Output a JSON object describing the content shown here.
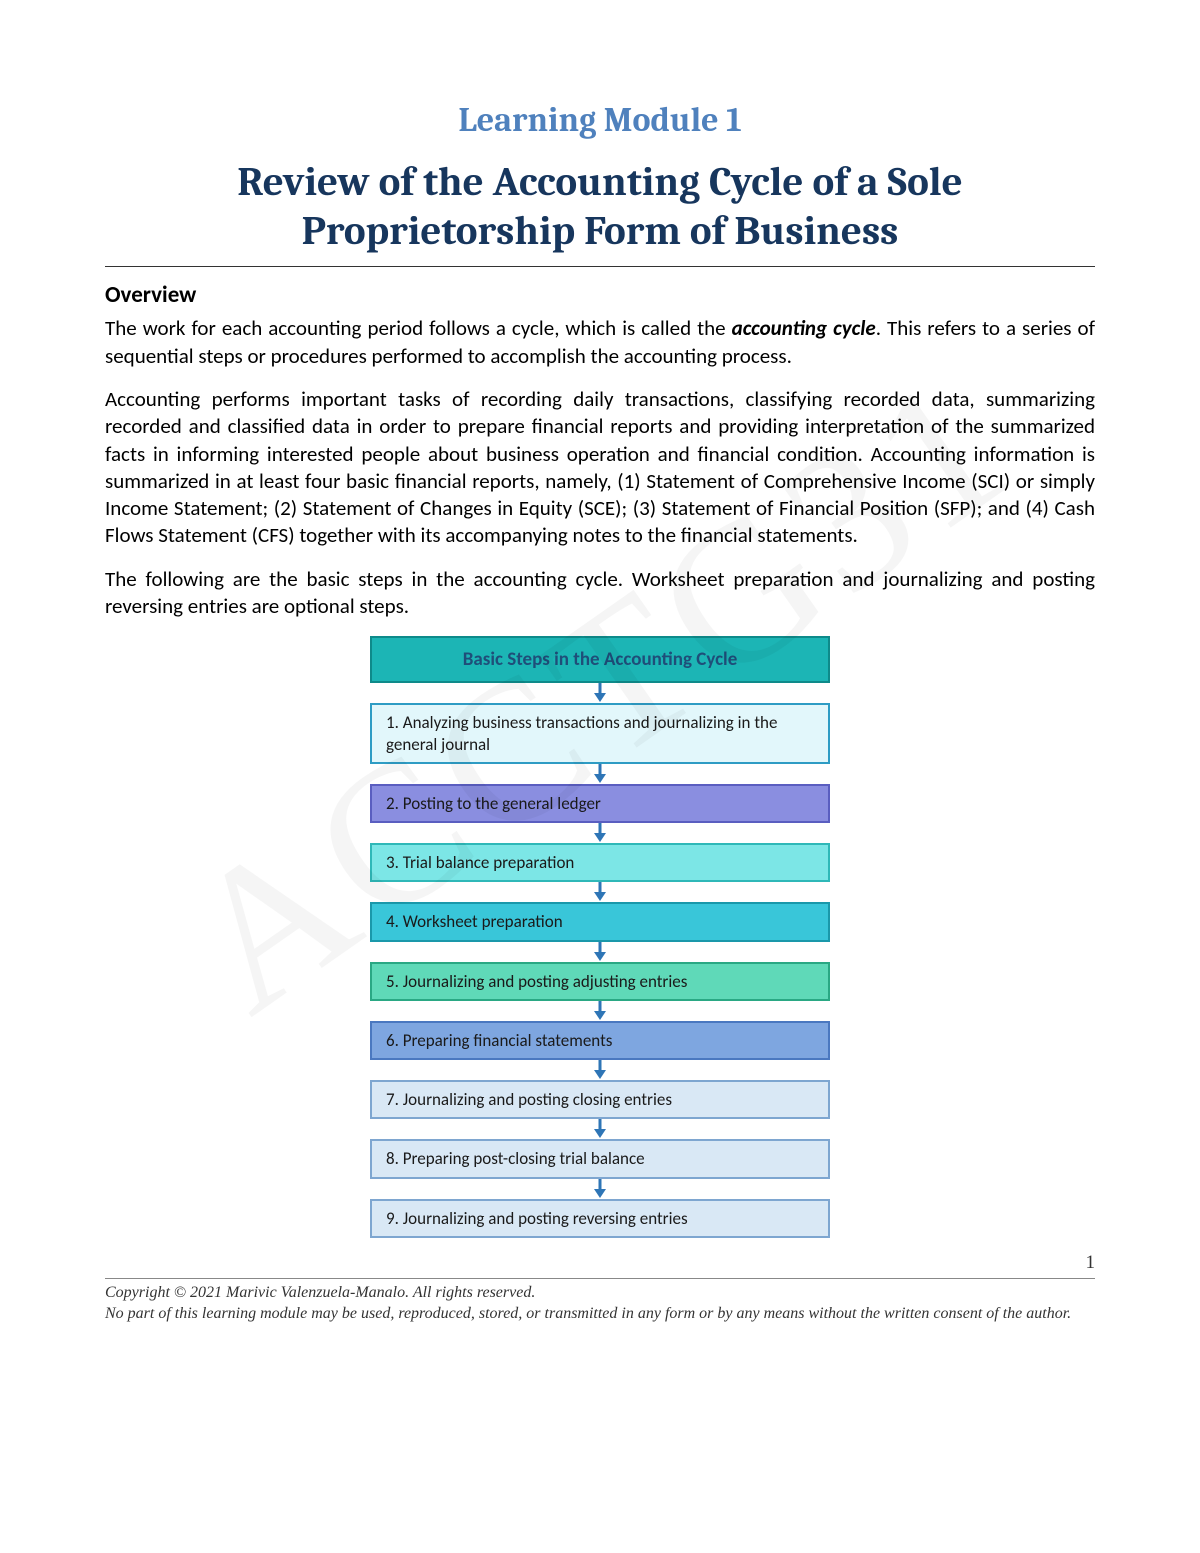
{
  "watermark_text": "ACCTG31",
  "module_label": "Learning Module 1",
  "main_title": "Review of the Accounting Cycle of a Sole Proprietorship Form of Business",
  "overview": {
    "heading": "Overview",
    "para1_pre": "The work for each accounting period follows a cycle, which is called the ",
    "para1_term": "accounting cycle",
    "para1_post": ".  This refers to a series of sequential steps or procedures performed to accomplish the accounting process.",
    "para2": "Accounting performs important tasks of recording daily transactions, classifying recorded data, summarizing recorded and classified data in order to prepare financial reports and providing interpretation of the summarized facts in informing interested people about business operation and financial condition. Accounting information is summarized in at least four basic financial reports, namely, (1) Statement of Comprehensive Income (SCI) or simply Income Statement; (2) Statement of Changes in Equity (SCE); (3) Statement of Financial Position (SFP); and (4) Cash Flows Statement (CFS) together with its accompanying notes to the financial statements.",
    "para3": "The following are the basic steps in the accounting cycle. Worksheet preparation and journalizing and posting reversing entries are optional steps."
  },
  "diagram": {
    "header": {
      "text": "Basic Steps in the Accounting Cycle",
      "bg": "#1cb5b5",
      "border": "#0e8a8a",
      "text_color": "#1f4e79"
    },
    "arrow_color": "#2e75b6",
    "steps": [
      {
        "text": "1.  Analyzing business transactions and journalizing in the general journal",
        "bg": "#e2f7fb",
        "border": "#2e9cc4"
      },
      {
        "text": "2.  Posting to the general ledger",
        "bg": "#8a8ee0",
        "border": "#5a5ec0"
      },
      {
        "text": "3.  Trial balance preparation",
        "bg": "#7ce6e6",
        "border": "#2fb8b8"
      },
      {
        "text": "4.   Worksheet preparation",
        "bg": "#39c6d9",
        "border": "#1a98aa"
      },
      {
        "text": "5.  Journalizing and posting adjusting entries",
        "bg": "#5fd9b8",
        "border": "#2aa884"
      },
      {
        "text": "6.    Preparing financial statements",
        "bg": "#7ea6e0",
        "border": "#4a78c0"
      },
      {
        "text": "7.  Journalizing and posting closing entries",
        "bg": "#d9e8f5",
        "border": "#7ea6d0"
      },
      {
        "text": "8.   Preparing post-closing trial balance",
        "bg": "#d9e8f5",
        "border": "#7ea6d0"
      },
      {
        "text": "9.  Journalizing and posting reversing entries",
        "bg": "#d9e8f5",
        "border": "#7ea6d0"
      }
    ]
  },
  "footer": {
    "page_number": "1",
    "copyright": "Copyright © 2021 Marivic Valenzuela-Manalo. All rights reserved.",
    "notice": "No part of this learning module may be used, reproduced, stored, or transmitted in any form or by any means without the written consent of the author."
  }
}
